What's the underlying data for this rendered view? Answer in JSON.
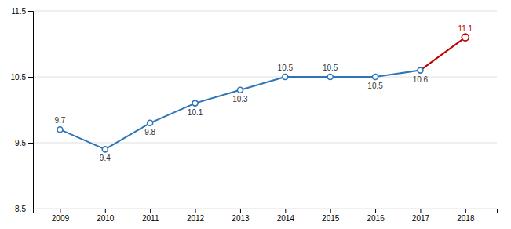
{
  "chart_data": {
    "type": "line",
    "x": [
      2009,
      2010,
      2011,
      2012,
      2013,
      2014,
      2015,
      2016,
      2017,
      2018
    ],
    "values": [
      9.7,
      9.4,
      9.8,
      10.1,
      10.3,
      10.5,
      10.5,
      10.5,
      10.6,
      11.1
    ],
    "colors": [
      "#2e75b6",
      "#2e75b6",
      "#2e75b6",
      "#2e75b6",
      "#2e75b6",
      "#2e75b6",
      "#2e75b6",
      "#2e75b6",
      "#2e75b6",
      "#c00000"
    ],
    "xlim": [
      2008.4,
      2018.7
    ],
    "xticks": [
      2009,
      2010,
      2011,
      2012,
      2013,
      2014,
      2015,
      2016,
      2017,
      2018
    ],
    "ylim": [
      8.5,
      11.5
    ],
    "yticks": [
      8.5,
      9.5,
      10.5,
      11.5
    ],
    "grid": true,
    "data_labels": true,
    "marker": "circle",
    "line_style": "solid"
  }
}
